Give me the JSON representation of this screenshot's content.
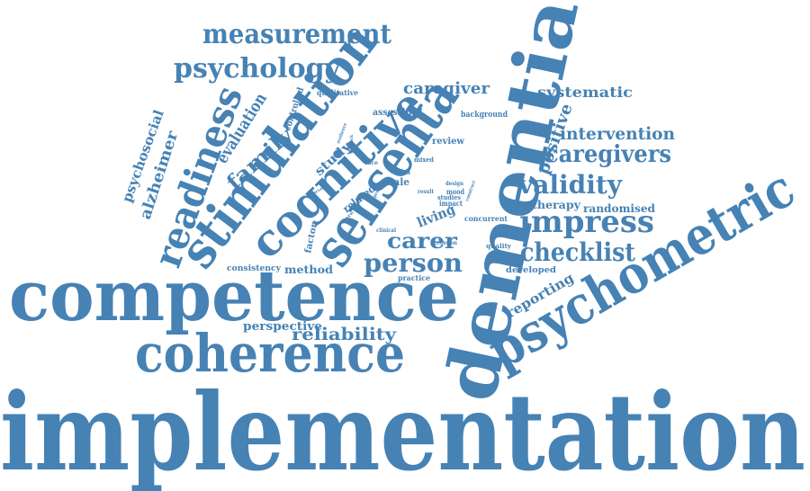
{
  "color": "#4682b4",
  "words": [
    "implementation",
    "dementia",
    "competence",
    "psychometric",
    "sensenta",
    "coherence",
    "stimulation",
    "cognitive",
    "readiness",
    "measurement",
    "psychology",
    "impress",
    "checklist",
    "validity",
    "caregivers",
    "intervention",
    "person",
    "carer",
    "reliability",
    "family",
    "evaluation",
    "caregiver",
    "systematic",
    "positive",
    "reporting",
    "psychosocial",
    "alzheimer",
    "therapy",
    "randomised",
    "perspective",
    "method",
    "study",
    "living",
    "controlled",
    "assessing",
    "qualitative",
    "background",
    "review",
    "related",
    "scale",
    "factor",
    "consistency",
    "developed",
    "concurrent",
    "quality",
    "practice",
    "trial",
    "mixed",
    "impact",
    "mood",
    "studies",
    "design",
    "result",
    "criterion",
    "clinical",
    "face",
    "resilience",
    "care",
    "survey",
    "feedback",
    "process",
    "construct"
  ]
}
